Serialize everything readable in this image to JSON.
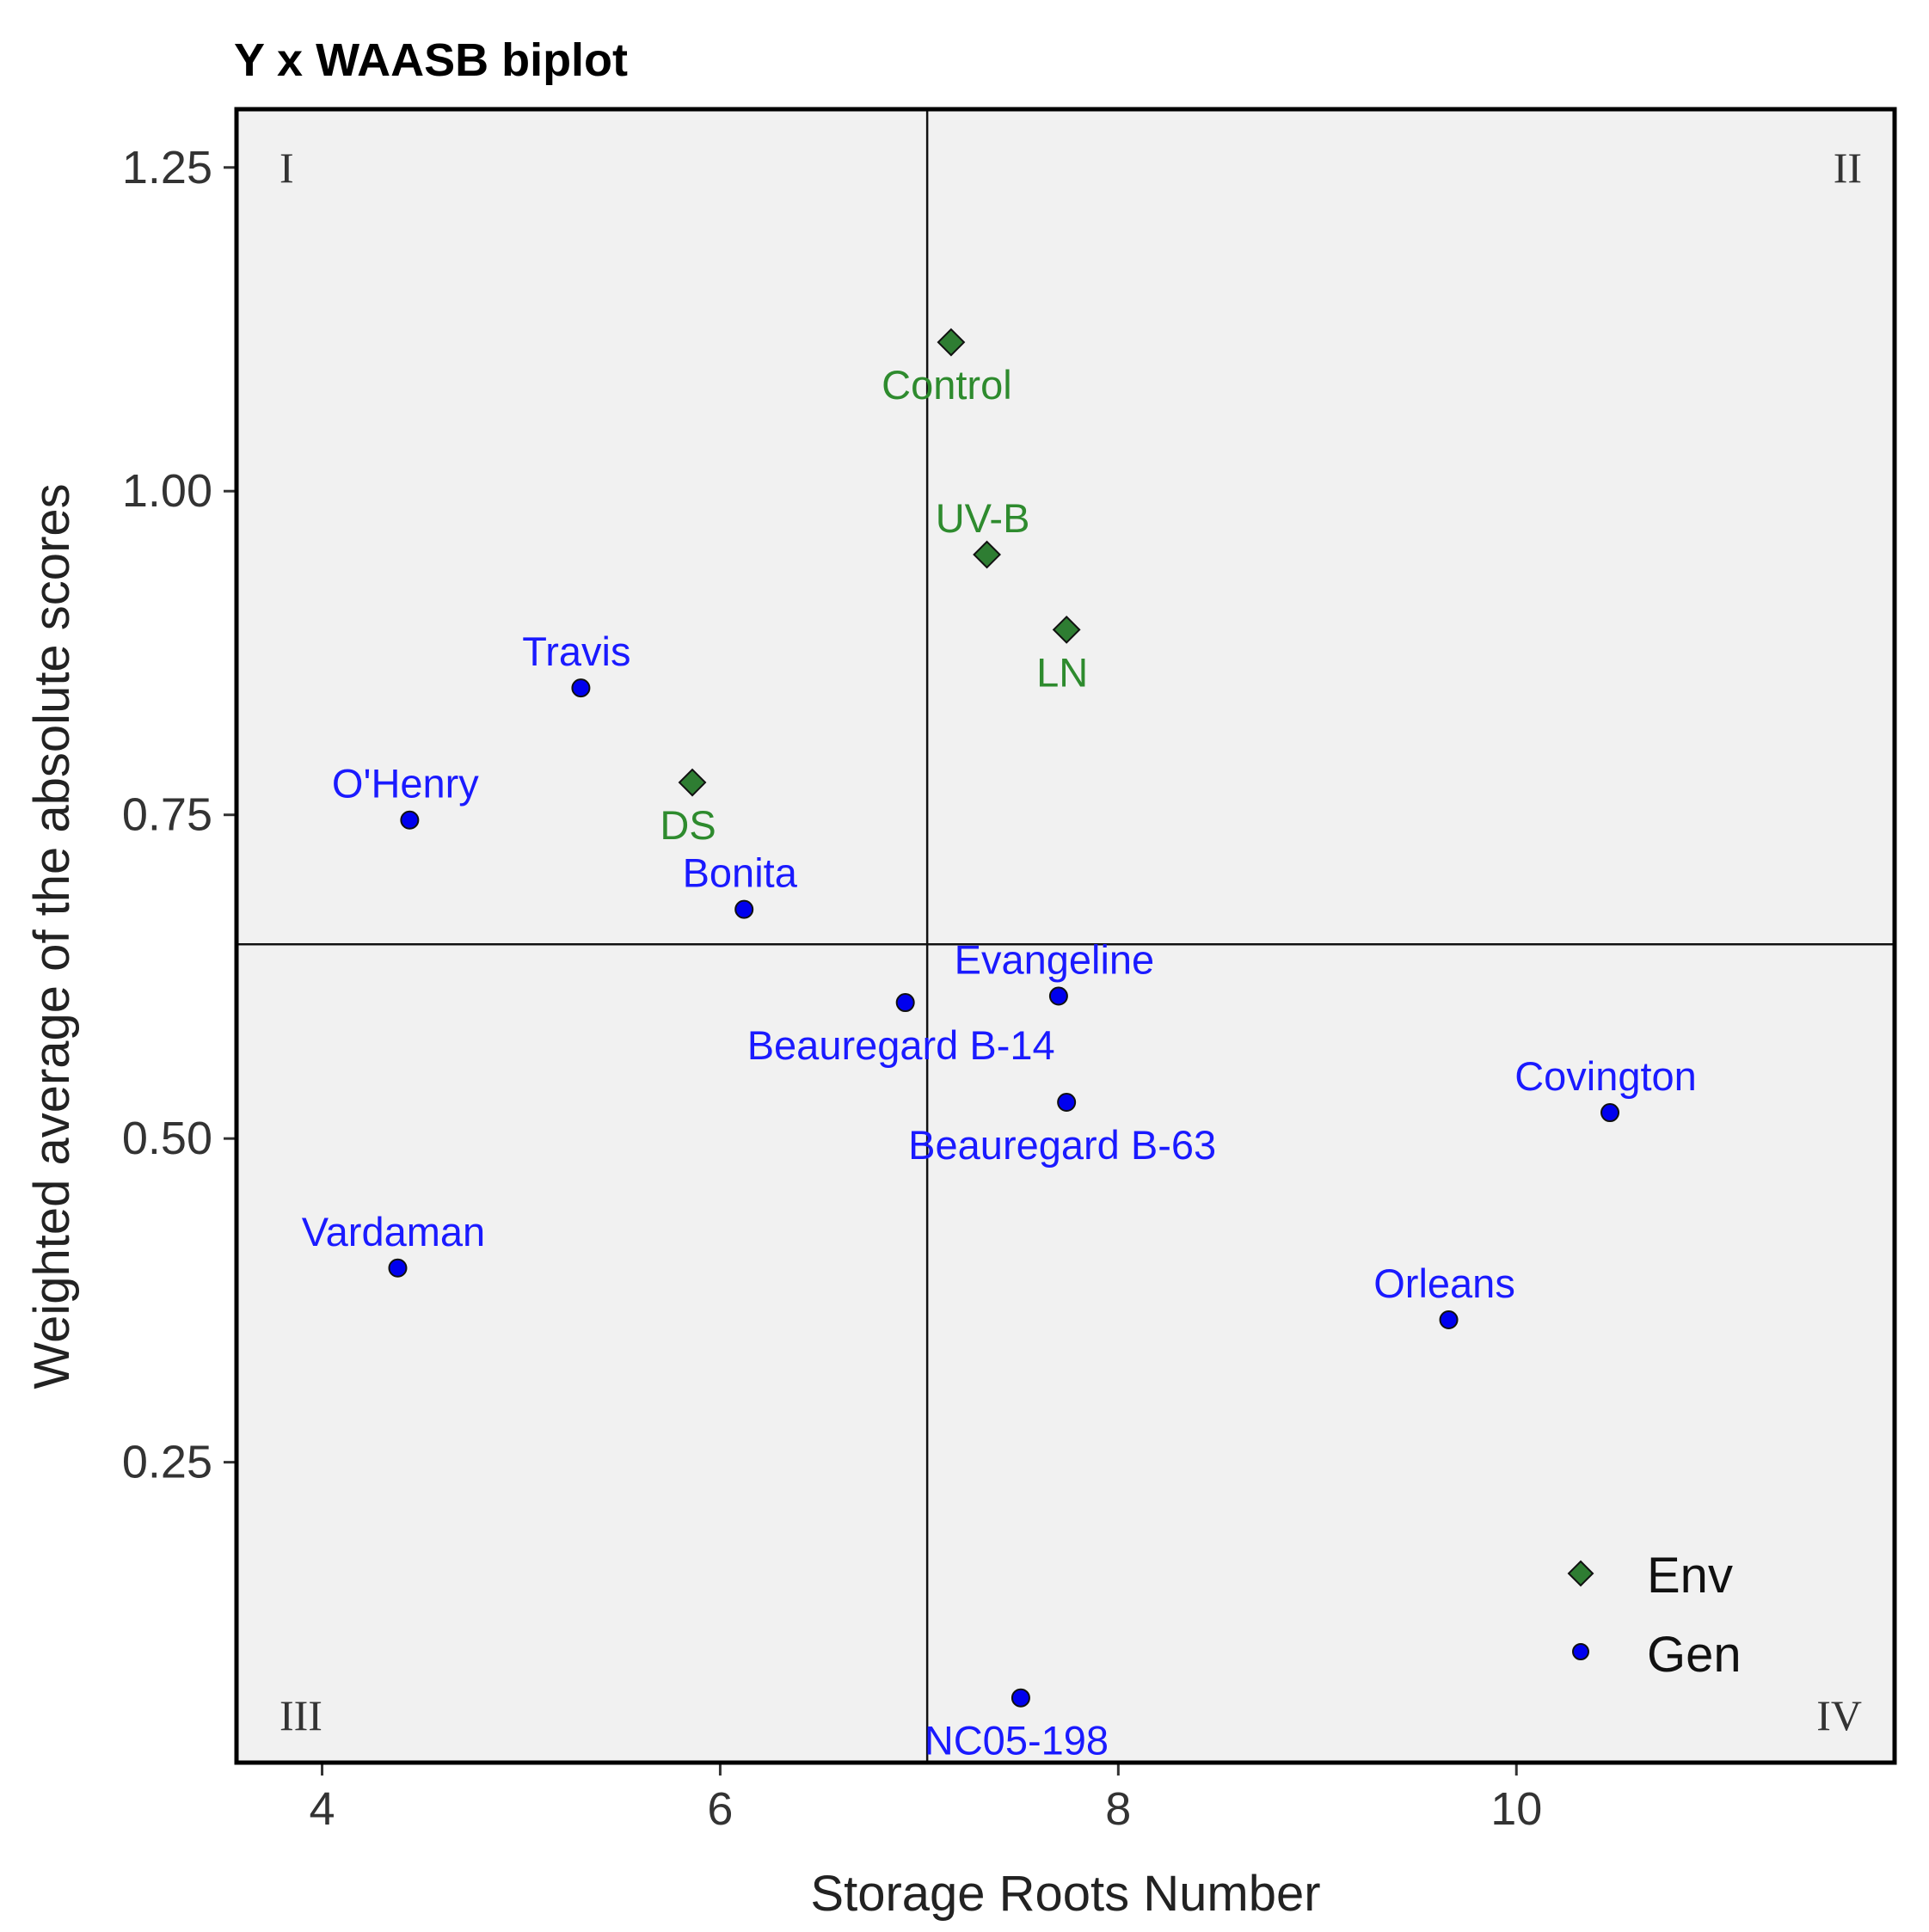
{
  "chart_data": {
    "type": "scatter",
    "title": "Y x WAASB biplot",
    "xlabel": "Storage Roots Number",
    "ylabel": "Weighted average of the absolute scores",
    "xlim": [
      3.57,
      11.9
    ],
    "ylim": [
      0.018,
      1.295
    ],
    "xticks": [
      4,
      6,
      8,
      10
    ],
    "xtick_labels": [
      "4",
      "6",
      "8",
      "10"
    ],
    "yticks": [
      0.25,
      0.5,
      0.75,
      1.0
    ],
    "ytick_labels": [
      "0.25",
      "0.50",
      "0.75",
      "1.00",
      "1.25"
    ],
    "yticks_all": [
      0.25,
      0.5,
      0.75,
      1.0,
      1.25
    ],
    "reference_lines": {
      "x": 7.04,
      "y": 0.65
    },
    "quadrants": [
      "I",
      "II",
      "III",
      "IV"
    ],
    "legend": {
      "position": "bottom-right",
      "entries": [
        {
          "name": "Env",
          "marker": "diamond",
          "color": "#2e7d32"
        },
        {
          "name": "Gen",
          "marker": "circle",
          "color": "#0000ee"
        }
      ]
    },
    "series": [
      {
        "name": "Env",
        "color": "#2e7d32",
        "label_color": "#2e8b2e",
        "points": [
          {
            "label": "Control",
            "x": 7.16,
            "y": 1.115,
            "label_pos": "below"
          },
          {
            "label": "UV-B",
            "x": 7.34,
            "y": 0.951,
            "label_pos": "above"
          },
          {
            "label": "LN",
            "x": 7.74,
            "y": 0.893,
            "label_pos": "below"
          },
          {
            "label": "DS",
            "x": 5.86,
            "y": 0.775,
            "label_pos": "below"
          }
        ]
      },
      {
        "name": "Gen",
        "color": "#0000ee",
        "label_color": "#1a1aff",
        "points": [
          {
            "label": "Travis",
            "x": 5.3,
            "y": 0.848,
            "label_pos": "above"
          },
          {
            "label": "O'Henry",
            "x": 4.44,
            "y": 0.746,
            "label_pos": "above"
          },
          {
            "label": "Bonita",
            "x": 6.12,
            "y": 0.677,
            "label_pos": "above"
          },
          {
            "label": "Evangeline",
            "x": 7.7,
            "y": 0.61,
            "label_pos": "above"
          },
          {
            "label": "Beauregard B-14",
            "x": 6.93,
            "y": 0.605,
            "label_pos": "below"
          },
          {
            "label": "Beauregard B-63",
            "x": 7.74,
            "y": 0.528,
            "label_pos": "below"
          },
          {
            "label": "Covington",
            "x": 10.47,
            "y": 0.52,
            "label_pos": "above"
          },
          {
            "label": "Vardaman",
            "x": 4.38,
            "y": 0.4,
            "label_pos": "above"
          },
          {
            "label": "Orleans",
            "x": 9.66,
            "y": 0.36,
            "label_pos": "above"
          },
          {
            "label": "NC05-198",
            "x": 7.51,
            "y": 0.068,
            "label_pos": "below"
          }
        ]
      }
    ]
  }
}
